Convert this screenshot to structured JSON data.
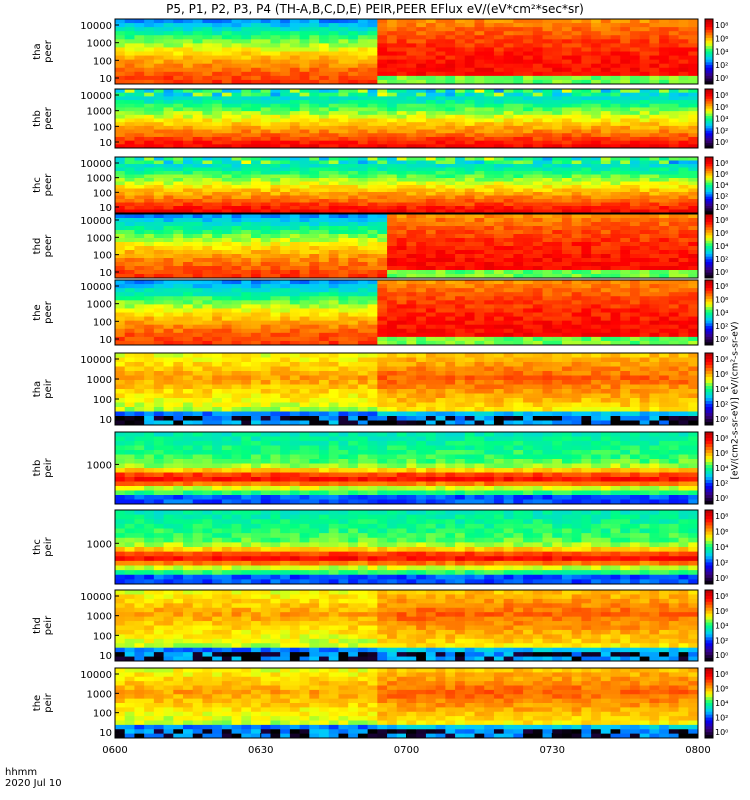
{
  "title": "P5, P1, P2, P3, P4 (TH-A,B,C,D,E) PEIR,PEER EFlux eV/(eV*cm²*sec*sr)",
  "colorbar_label": "[eV/(cm2-s-sr-eV)] eV/(cm²-s-sr-eV)",
  "corner": {
    "line1": "hhmm",
    "line2": "2020 Jul 10"
  },
  "chart_data": {
    "type": "heatmap",
    "x_ticks": [
      "0600",
      "0630",
      "0700",
      "0730",
      "0800"
    ],
    "x_range": [
      "06:00",
      "08:00"
    ],
    "colorbar_ticks": [
      "10⁸",
      "10⁶",
      "10⁴",
      "10²",
      "10⁰"
    ],
    "colorscale": [
      "#000000",
      "#3b0080",
      "#0000ff",
      "#00c8ff",
      "#00ff80",
      "#ffff00",
      "#ff8000",
      "#ff0000",
      "#b40000"
    ],
    "panels": [
      {
        "probe": "tha",
        "species": "peer",
        "y_scale": "log",
        "y_ticks": [
          "10000",
          "1000",
          "100",
          "10"
        ],
        "event_time": "06:53"
      },
      {
        "probe": "thb",
        "species": "peer",
        "y_scale": "log",
        "y_ticks": [
          "10000",
          "1000",
          "100",
          "10"
        ]
      },
      {
        "probe": "thc",
        "species": "peer",
        "y_scale": "log",
        "y_ticks": [
          "10000",
          "1000",
          "100",
          "10"
        ]
      },
      {
        "probe": "thd",
        "species": "peer",
        "y_scale": "log",
        "y_ticks": [
          "10000",
          "1000",
          "100",
          "10"
        ],
        "event_time": "06:55"
      },
      {
        "probe": "the",
        "species": "peer",
        "y_scale": "log",
        "y_ticks": [
          "10000",
          "1000",
          "100",
          "10"
        ],
        "event_time": "06:53"
      },
      {
        "probe": "tha",
        "species": "peir",
        "y_scale": "log",
        "y_ticks": [
          "10000",
          "1000",
          "100",
          "10"
        ],
        "event_time": "06:53"
      },
      {
        "probe": "thb",
        "species": "peir",
        "y_scale": "log",
        "y_ticks": [
          "1000"
        ]
      },
      {
        "probe": "thc",
        "species": "peir",
        "y_scale": "log",
        "y_ticks": [
          "1000"
        ]
      },
      {
        "probe": "thd",
        "species": "peir",
        "y_scale": "log",
        "y_ticks": [
          "10000",
          "1000",
          "100",
          "10"
        ],
        "event_time": "06:53"
      },
      {
        "probe": "the",
        "species": "peir",
        "y_scale": "log",
        "y_ticks": [
          "10000",
          "1000",
          "100",
          "10"
        ],
        "event_time": "06:53"
      }
    ]
  }
}
